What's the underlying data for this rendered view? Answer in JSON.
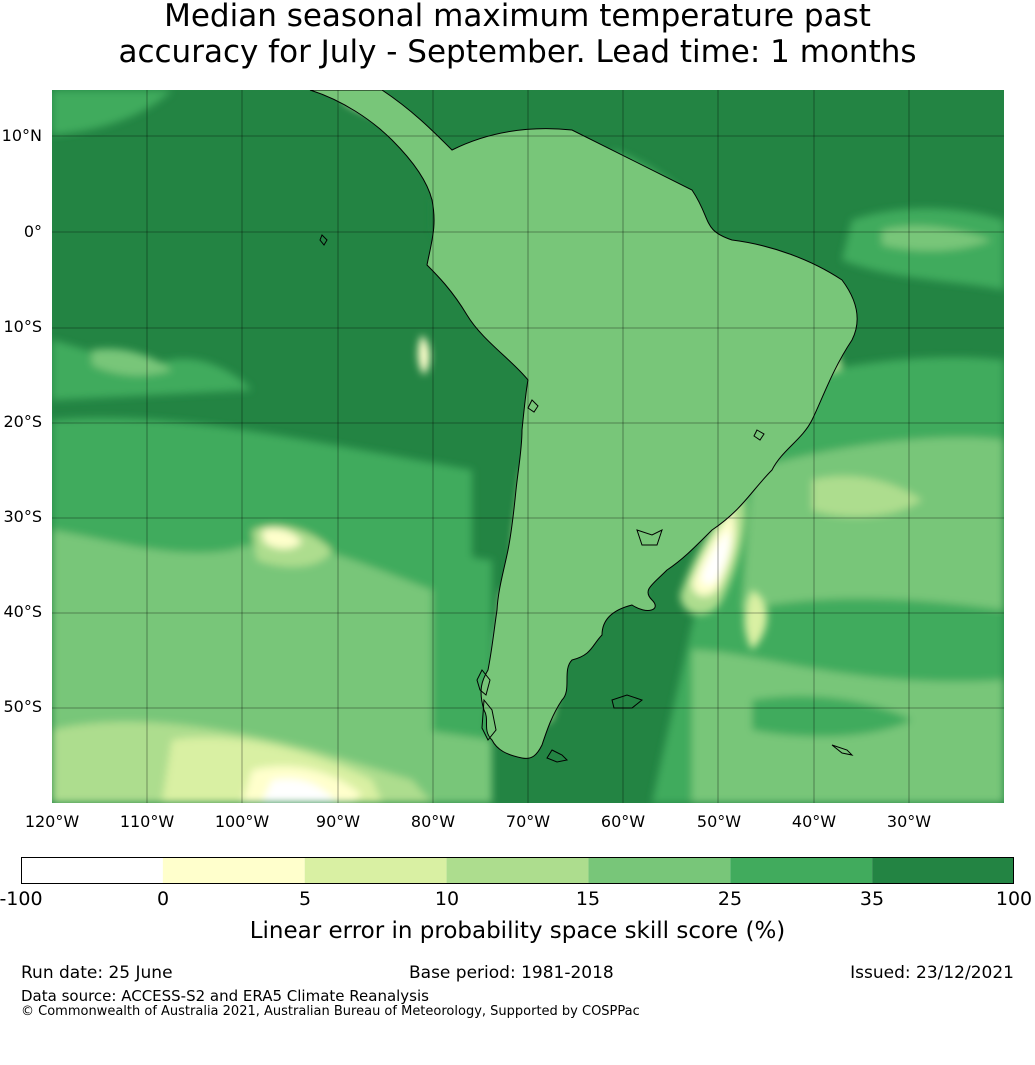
{
  "title": {
    "line1": "Median seasonal maximum temperature past",
    "line2": "accuracy for July - September. Lead time: 1 months"
  },
  "map": {
    "lat_labels": [
      "10°N",
      "0°",
      "10°S",
      "20°S",
      "30°S",
      "40°S",
      "50°S"
    ],
    "lon_labels": [
      "120°W",
      "110°W",
      "100°W",
      "90°W",
      "80°W",
      "70°W",
      "60°W",
      "50°W",
      "40°W",
      "30°W"
    ],
    "region": "South America",
    "colors": {
      "band_lt0": "#ffffff",
      "band_0_5": "#ffffcc",
      "band_5_10": "#d9f0a3",
      "band_10_15": "#addd8e",
      "band_15_25": "#78c679",
      "band_25_35": "#41ab5d",
      "band_35_100": "#238443"
    }
  },
  "colorbar": {
    "ticks": [
      "-100",
      "0",
      "5",
      "10",
      "15",
      "25",
      "35",
      "100"
    ],
    "colors": [
      "#ffffff",
      "#ffffcc",
      "#d9f0a3",
      "#addd8e",
      "#78c679",
      "#41ab5d",
      "#238443"
    ],
    "label": "Linear error in probability space skill score (%)"
  },
  "footer": {
    "run_date": "Run date: 25 June",
    "base_period": "Base period: 1981-2018",
    "issued": "Issued: 23/12/2021",
    "data_source": "Data source: ACCESS-S2 and ERA5 Climate Reanalysis",
    "copyright": "© Commonwealth of Australia 2021, Australian Bureau of Meteorology, Supported by COSPPac"
  }
}
